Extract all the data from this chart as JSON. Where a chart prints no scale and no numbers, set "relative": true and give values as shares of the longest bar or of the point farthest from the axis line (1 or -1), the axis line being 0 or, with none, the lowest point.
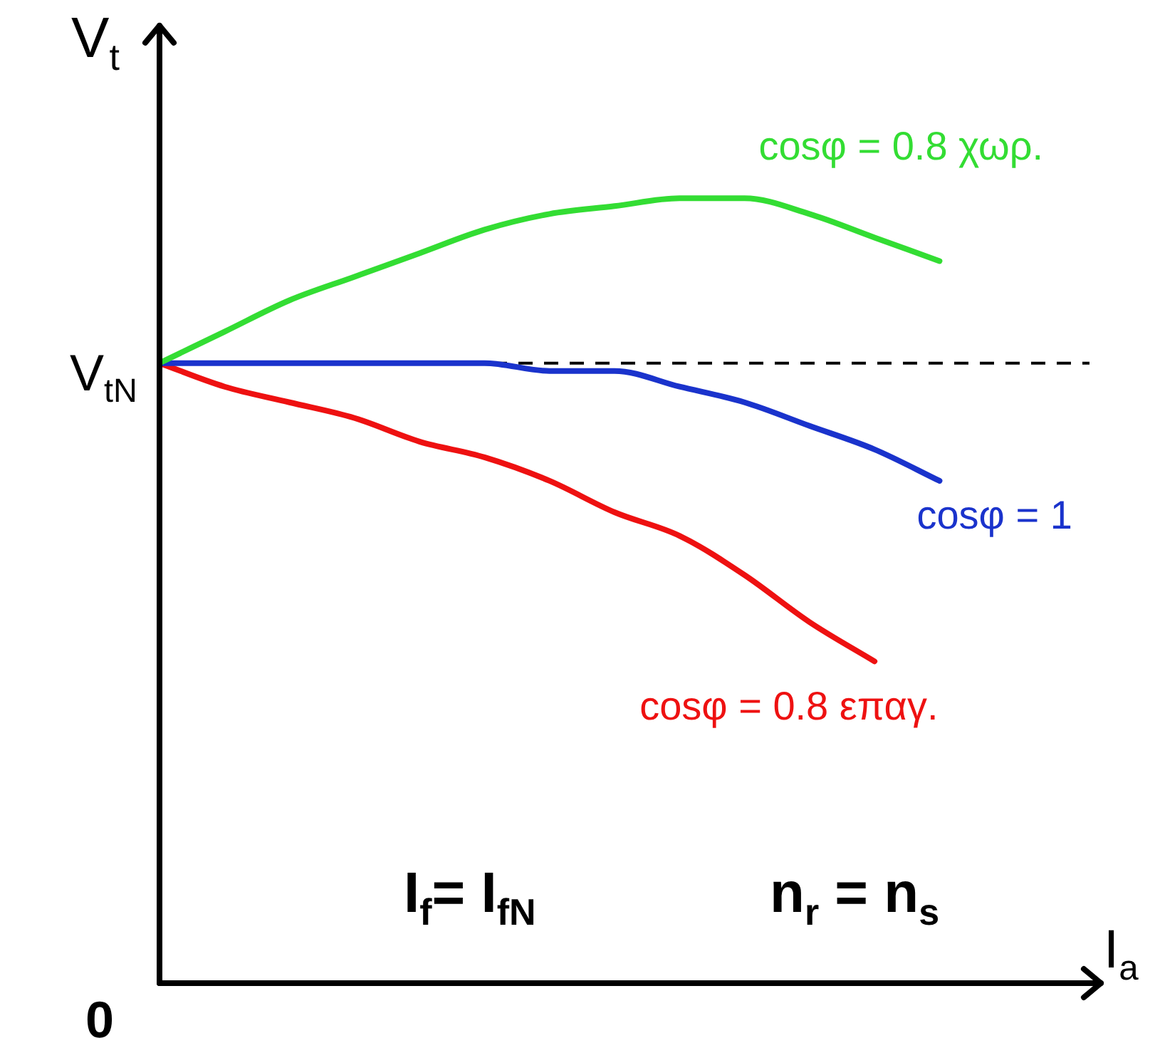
{
  "chart_data": {
    "type": "line",
    "relative": true,
    "ylabel": "V$_{t}$",
    "xlabel": "I$_{a}$",
    "legend": false,
    "grid": false,
    "marker": "none",
    "line_style": "solid",
    "categories": [
      null,
      null,
      null,
      null,
      null,
      null,
      null,
      null,
      null,
      null,
      null,
      null,
      null,
      null,
      null
    ],
    "series": [
      {
        "name": "cosφ = 0.8 χωρ.",
        "color": "#33dd33",
        "values": [
          0.79,
          0.83,
          0.87,
          0.9,
          0.93,
          0.96,
          0.98,
          0.99,
          1,
          1,
          0.98,
          0.95,
          0.92,
          null,
          null
        ]
      },
      {
        "name": "cosφ = 1",
        "color": "#1a33cc",
        "values": [
          0.79,
          0.79,
          0.79,
          0.79,
          0.79,
          0.79,
          0.78,
          0.78,
          0.76,
          0.74,
          0.71,
          0.68,
          0.64,
          null,
          null
        ]
      },
      {
        "name": "cosφ = 0.8 επαγ.",
        "color": "#ee1111",
        "values": [
          0.79,
          0.76,
          0.74,
          0.72,
          0.69,
          0.67,
          0.64,
          0.6,
          0.57,
          0.52,
          0.46,
          0.41,
          null,
          null,
          null
        ]
      }
    ],
    "ref_lines": [
      {
        "axis": "y",
        "value": 0.79,
        "label": "V$_{tN}$",
        "color": "#000000",
        "line_style": "dashed"
      }
    ],
    "annotations": [
      "0",
      "I$_{f}$= I$_{fN}$",
      "n$_{r}$ = n$_{s}$"
    ]
  }
}
